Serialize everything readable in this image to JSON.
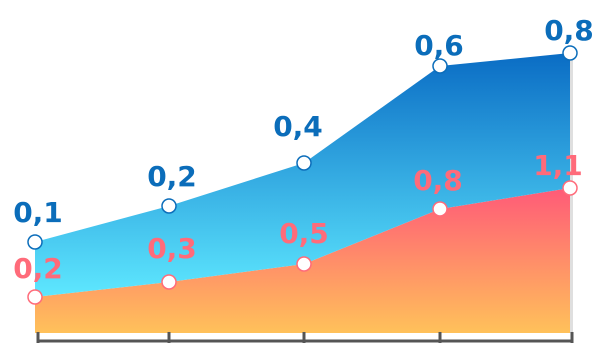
{
  "chart_data": {
    "type": "area",
    "title": "",
    "xlabel": "",
    "ylabel": "",
    "categories": [
      "",
      "",
      "",
      "",
      ""
    ],
    "ylim": [
      0,
      1
    ],
    "grid": false,
    "legend": "none",
    "series": [
      {
        "values": [
          0.1,
          0.2,
          0.4,
          0.6,
          0.8
        ],
        "labels": [
          "0,1",
          "0,2",
          "0,4",
          "0,6",
          "0,8"
        ],
        "label_color": "#0B6DBA",
        "gradient_top": "#0A6CC4",
        "gradient_bottom": "#5EE8FF"
      },
      {
        "values": [
          0.2,
          0.3,
          0.5,
          0.8,
          1.1
        ],
        "labels": [
          "0,2",
          "0,3",
          "0,5",
          "0,8",
          "1,1"
        ],
        "label_color": "#FF6B7A",
        "gradient_top": "#FF5A78",
        "gradient_bottom": "#FFC15A"
      }
    ],
    "colors": {
      "axis": "#555555",
      "marker_fill": "#FFFFFF"
    }
  }
}
